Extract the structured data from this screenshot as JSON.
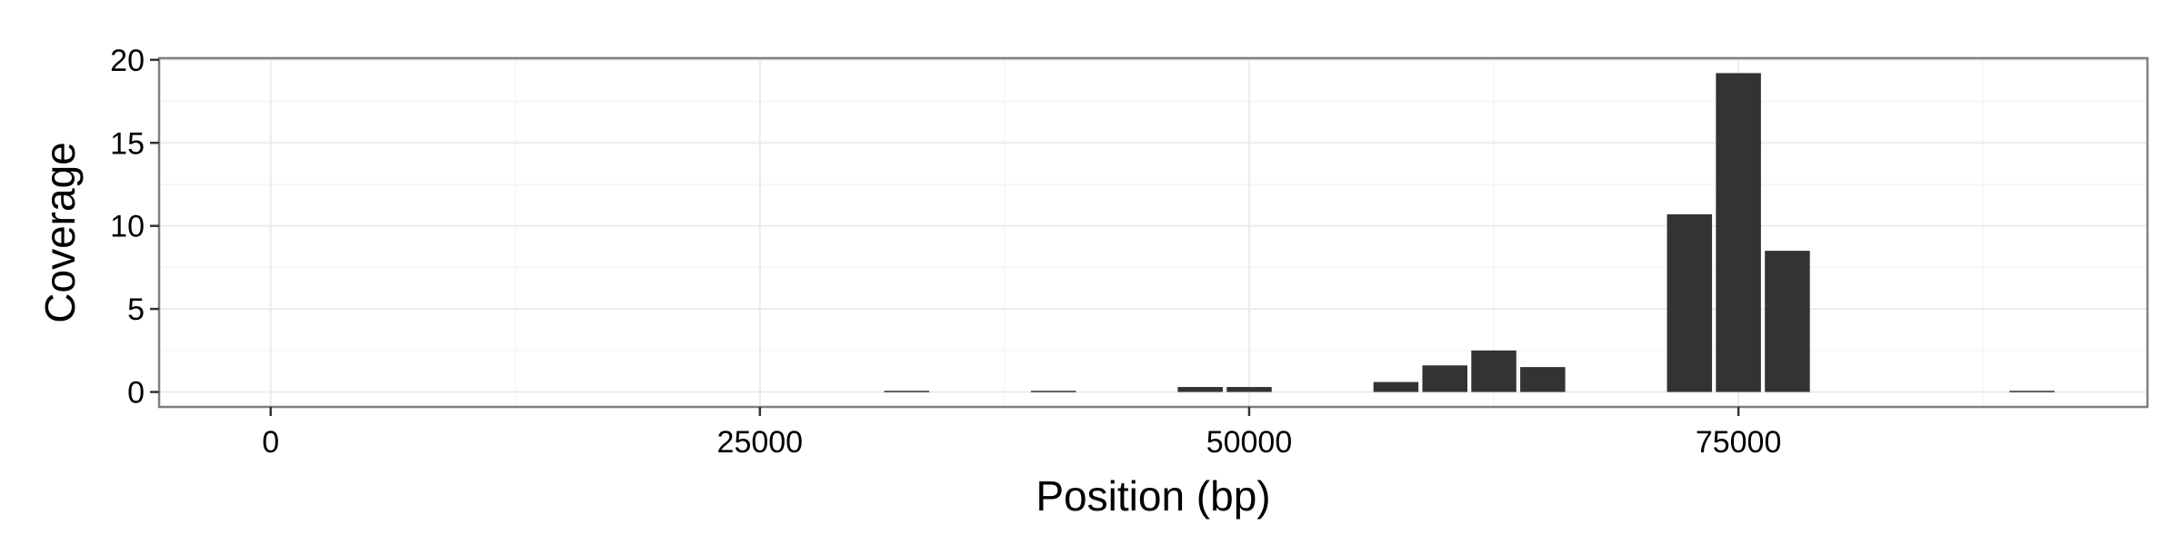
{
  "chart_data": {
    "type": "bar",
    "title": "",
    "xlabel": "Position (bp)",
    "ylabel": "Coverage",
    "xlim": [
      -5700,
      95900
    ],
    "ylim": [
      -0.9,
      20.1
    ],
    "x_ticks": [
      0,
      25000,
      50000,
      75000
    ],
    "y_ticks": [
      0,
      5,
      10,
      15,
      20
    ],
    "grid": true,
    "bar_width": 2300,
    "bar_color": "#333333",
    "x": [
      32500,
      40000,
      47500,
      50000,
      57500,
      60000,
      62500,
      65000,
      72500,
      75000,
      77500,
      90000
    ],
    "values": [
      0.07,
      0.07,
      0.3,
      0.3,
      0.6,
      1.6,
      2.5,
      1.5,
      10.7,
      19.2,
      8.5,
      0.07
    ]
  }
}
